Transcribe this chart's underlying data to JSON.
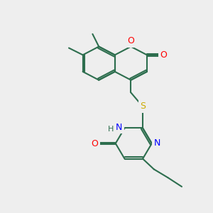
{
  "background_color": "#eeeeee",
  "bond_color": "#2d6e4e",
  "atom_colors": {
    "O": "#ff0000",
    "N": "#0000ff",
    "S": "#ccaa00",
    "H": "#2d6e4e",
    "C": "#2d6e4e"
  },
  "figsize": [
    3.0,
    3.0
  ],
  "dpi": 100
}
